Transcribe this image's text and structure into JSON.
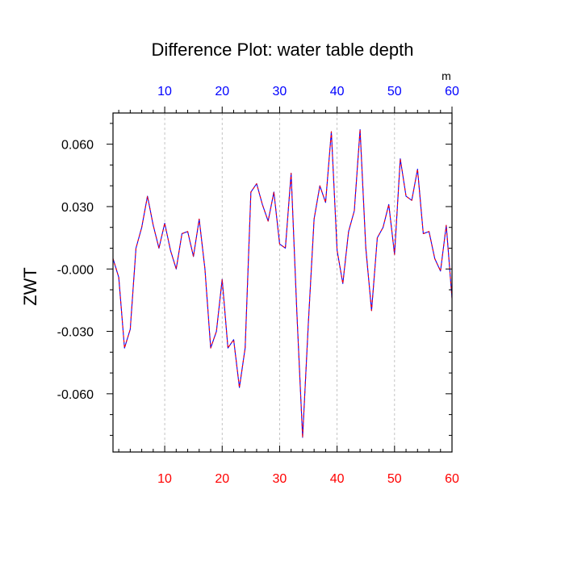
{
  "chart_data": {
    "type": "line",
    "title": "Difference Plot: water table depth",
    "ylabel": "ZWT",
    "top_axis_units": "m",
    "xlim": [
      1,
      60
    ],
    "ylim": [
      -0.088,
      0.075
    ],
    "x_ticks": [
      10,
      20,
      30,
      40,
      50,
      60
    ],
    "x_tick_labels": [
      "10",
      "20",
      "30",
      "40",
      "50",
      "60"
    ],
    "y_ticks": [
      0.06,
      0.03,
      0.0,
      -0.03,
      -0.06
    ],
    "y_tick_labels": [
      "0.060",
      "0.030",
      "-0.000",
      "-0.030",
      "-0.060"
    ],
    "grid": "vertical dashed at major x ticks",
    "colors": {
      "bottom_tick_labels": "#ff0000",
      "top_tick_labels": "#0000ff",
      "series_primary": "#0000ff",
      "series_overlay": "#ff0000"
    },
    "series": [
      {
        "x": [
          1,
          2,
          3,
          4,
          5,
          6,
          7,
          8,
          9,
          10,
          11,
          12,
          13,
          14,
          15,
          16,
          17,
          18,
          19,
          20,
          21,
          22,
          23,
          24,
          25,
          26,
          27,
          28,
          29,
          30,
          31,
          32,
          33,
          34,
          35,
          36,
          37,
          38,
          39,
          40,
          41,
          42,
          43,
          44,
          45,
          46,
          47,
          48,
          49,
          50,
          51,
          52,
          53,
          54,
          55,
          56,
          57,
          58,
          59,
          60
        ],
        "values": [
          0.005,
          -0.004,
          -0.038,
          -0.029,
          0.01,
          0.02,
          0.035,
          0.021,
          0.01,
          0.022,
          0.009,
          0.0,
          0.017,
          0.018,
          0.006,
          0.024,
          0.0,
          -0.038,
          -0.03,
          -0.005,
          -0.038,
          -0.034,
          -0.057,
          -0.038,
          0.037,
          0.041,
          0.031,
          0.023,
          0.037,
          0.012,
          0.01,
          0.046,
          -0.021,
          -0.081,
          -0.026,
          0.024,
          0.04,
          0.032,
          0.066,
          0.009,
          -0.007,
          0.018,
          0.028,
          0.067,
          0.01,
          -0.02,
          0.015,
          0.02,
          0.031,
          0.007,
          0.053,
          0.035,
          0.033,
          0.048,
          0.017,
          0.018,
          0.005,
          -0.001,
          0.021,
          -0.014
        ]
      }
    ]
  }
}
